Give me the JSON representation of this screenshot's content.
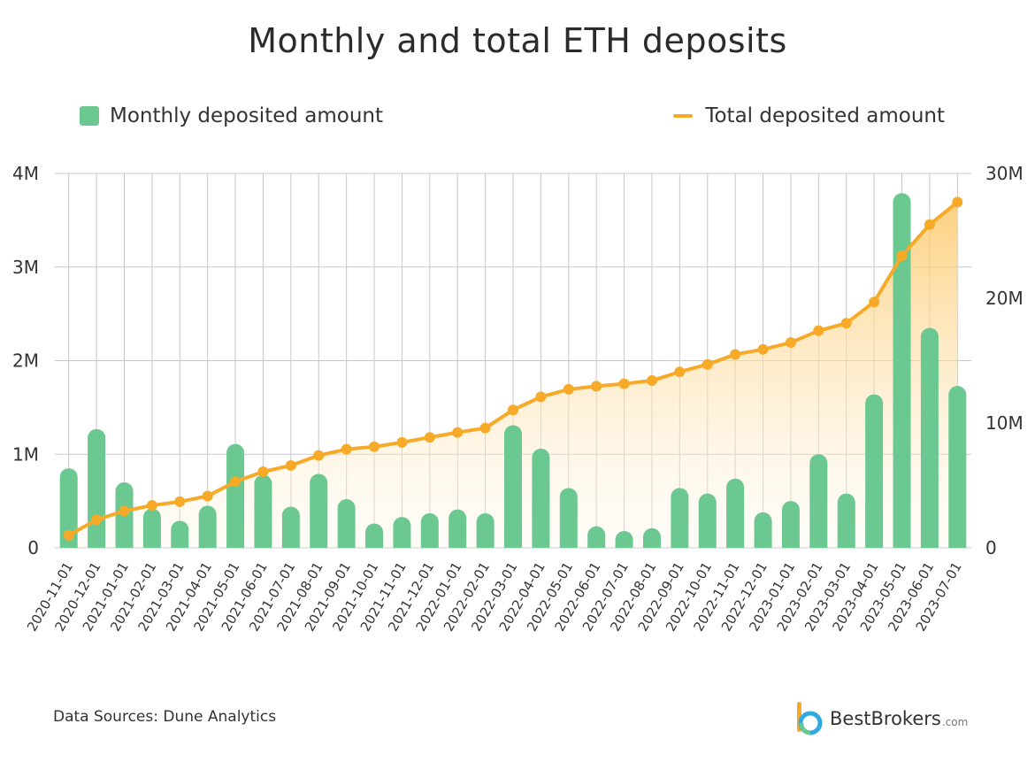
{
  "chart_data": {
    "type": "bar+line",
    "title": "Monthly and total ETH deposits",
    "legend": {
      "placement": "top",
      "bar_label": "Monthly deposited amount",
      "line_label": "Total deposited amount"
    },
    "categories": [
      "2020-11-01",
      "2020-12-01",
      "2021-01-01",
      "2021-02-01",
      "2021-03-01",
      "2021-04-01",
      "2021-05-01",
      "2021-06-01",
      "2021-07-01",
      "2021-08-01",
      "2021-09-01",
      "2021-10-01",
      "2021-11-01",
      "2021-12-01",
      "2022-01-01",
      "2022-02-01",
      "2022-03-01",
      "2022-04-01",
      "2022-05-01",
      "2022-06-01",
      "2022-07-01",
      "2022-08-01",
      "2022-09-01",
      "2022-10-01",
      "2022-11-01",
      "2022-12-01",
      "2023-01-01",
      "2023-02-01",
      "2023-03-01",
      "2023-04-01",
      "2023-05-01",
      "2023-06-01",
      "2023-07-01"
    ],
    "series": [
      {
        "name": "Monthly deposited amount",
        "type": "bar",
        "axis": "left",
        "color": "#6bc891",
        "values": [
          850000,
          1270000,
          700000,
          420000,
          290000,
          450000,
          1110000,
          780000,
          440000,
          790000,
          520000,
          260000,
          330000,
          370000,
          410000,
          370000,
          1310000,
          1060000,
          640000,
          230000,
          180000,
          210000,
          640000,
          580000,
          740000,
          380000,
          500000,
          1000000,
          580000,
          1640000,
          3790000,
          2350000,
          1730000
        ]
      },
      {
        "name": "Total deposited amount",
        "type": "line",
        "axis": "right",
        "color": "#f7a928",
        "values": [
          1000000,
          2250000,
          2950000,
          3400000,
          3700000,
          4150000,
          5300000,
          6100000,
          6600000,
          7400000,
          7900000,
          8100000,
          8450000,
          8850000,
          9250000,
          9600000,
          11050000,
          12100000,
          12700000,
          12950000,
          13150000,
          13400000,
          14100000,
          14700000,
          15500000,
          15900000,
          16450000,
          17400000,
          18000000,
          19700000,
          23400000,
          25900000,
          27700000
        ]
      }
    ],
    "y_left": {
      "min": 0,
      "max": 4000000,
      "ticks": [
        0,
        1000000,
        2000000,
        3000000,
        4000000
      ],
      "tick_labels": [
        "0",
        "1M",
        "2M",
        "3M",
        "4M"
      ]
    },
    "y_right": {
      "min": 0,
      "max": 30000000,
      "ticks": [
        0,
        10000000,
        20000000,
        30000000
      ],
      "tick_labels": [
        "0",
        "10M",
        "20M",
        "30M"
      ]
    },
    "grid": true,
    "colors": {
      "grid": "#c8c8c8",
      "area_top": "#fcc96a",
      "area_bottom": "#fff6e6"
    }
  },
  "footer": {
    "source": "Data Sources: Dune Analytics",
    "brand_name": "BestBrokers",
    "brand_suffix": ".com"
  }
}
